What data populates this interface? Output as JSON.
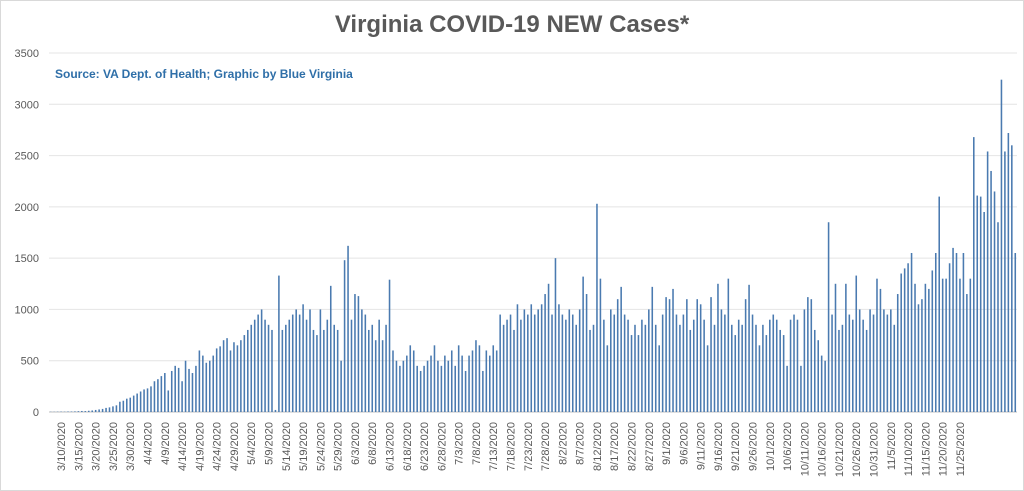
{
  "chart_data": {
    "type": "bar",
    "title": "Virginia COVID-19 NEW Cases*",
    "subtitle": "Source: VA Dept. of Health; Graphic by Blue Virginia",
    "xlabel": "",
    "ylabel": "",
    "ylim": [
      0,
      3500
    ],
    "yticks": [
      0,
      500,
      1000,
      1500,
      2000,
      2500,
      3000,
      3500
    ],
    "grid": true,
    "legend": "none",
    "bar_color": "#4a7ab0",
    "start_date": "2020-03-07",
    "x_tick_labels": [
      "3/10/2020",
      "3/15/2020",
      "3/20/2020",
      "3/25/2020",
      "3/30/2020",
      "4/4/2020",
      "4/9/2020",
      "4/14/2020",
      "4/19/2020",
      "4/24/2020",
      "4/29/2020",
      "5/4/2020",
      "5/9/2020",
      "5/14/2020",
      "5/19/2020",
      "5/24/2020",
      "5/29/2020",
      "6/3/2020",
      "6/8/2020",
      "6/13/2020",
      "6/18/2020",
      "6/23/2020",
      "6/28/2020",
      "7/3/2020",
      "7/8/2020",
      "7/13/2020",
      "7/18/2020",
      "7/23/2020",
      "7/28/2020",
      "8/2/2020",
      "8/7/2020",
      "8/12/2020",
      "8/17/2020",
      "8/22/2020",
      "8/27/2020",
      "9/1/2020",
      "9/6/2020",
      "9/11/2020",
      "9/16/2020",
      "9/21/2020",
      "9/26/2020",
      "10/1/2020",
      "10/6/2020",
      "10/11/2020",
      "10/16/2020",
      "10/21/2020",
      "10/26/2020",
      "10/31/2020",
      "11/5/2020",
      "11/10/2020",
      "11/15/2020",
      "11/20/2020",
      "11/25/2020"
    ],
    "values": [
      2,
      2,
      3,
      4,
      3,
      5,
      5,
      6,
      8,
      10,
      9,
      12,
      15,
      20,
      25,
      30,
      40,
      45,
      55,
      65,
      100,
      110,
      130,
      140,
      160,
      180,
      200,
      220,
      230,
      250,
      300,
      320,
      350,
      380,
      210,
      400,
      450,
      430,
      300,
      500,
      420,
      380,
      450,
      600,
      550,
      480,
      500,
      550,
      620,
      640,
      700,
      720,
      600,
      680,
      650,
      700,
      750,
      800,
      850,
      900,
      950,
      1000,
      900,
      850,
      800,
      20,
      1330,
      800,
      850,
      900,
      950,
      1000,
      950,
      1050,
      900,
      1000,
      800,
      750,
      1000,
      800,
      900,
      1230,
      850,
      800,
      500,
      1480,
      1620,
      900,
      1150,
      1130,
      1000,
      950,
      800,
      850,
      700,
      900,
      700,
      850,
      1290,
      600,
      500,
      450,
      500,
      550,
      650,
      600,
      450,
      400,
      450,
      500,
      550,
      650,
      500,
      450,
      550,
      500,
      600,
      450,
      650,
      550,
      400,
      550,
      600,
      700,
      650,
      400,
      600,
      550,
      650,
      600,
      950,
      850,
      900,
      950,
      800,
      1050,
      900,
      1000,
      950,
      1050,
      950,
      1000,
      1050,
      1150,
      1250,
      950,
      1500,
      1050,
      950,
      900,
      1000,
      950,
      850,
      1000,
      1320,
      1150,
      800,
      850,
      2030,
      1300,
      900,
      650,
      1000,
      950,
      1100,
      1220,
      950,
      900,
      750,
      850,
      750,
      900,
      850,
      1000,
      1220,
      850,
      650,
      950,
      1120,
      1100,
      1200,
      950,
      850,
      950,
      1100,
      800,
      900,
      1100,
      1050,
      900,
      650,
      1120,
      850,
      1250,
      1000,
      950,
      1300,
      850,
      750,
      900,
      850,
      1100,
      1240,
      950,
      850,
      650,
      850,
      750,
      900,
      950,
      900,
      800,
      750,
      450,
      900,
      950,
      900,
      450,
      1000,
      1120,
      1100,
      800,
      700,
      550,
      500,
      1850,
      950,
      1250,
      800,
      850,
      1250,
      950,
      900,
      1330,
      1000,
      900,
      800,
      1000,
      950,
      1300,
      1200,
      1000,
      950,
      1000,
      850,
      1150,
      1350,
      1400,
      1450,
      1550,
      1250,
      1050,
      1100,
      1250,
      1200,
      1380,
      1550,
      2100,
      1300,
      1300,
      1450,
      1600,
      1550,
      1300,
      1550,
      1150,
      1300,
      2680,
      2110,
      2100,
      1950,
      2540,
      2350,
      2150,
      1850,
      3240,
      2540,
      2720,
      2600,
      1550
    ]
  }
}
